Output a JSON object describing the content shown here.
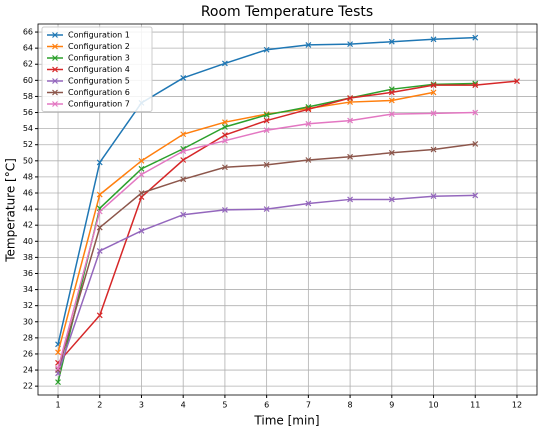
{
  "chart_data": {
    "type": "line",
    "title": "Room Temperature Tests",
    "x_label": "Time [min]",
    "y_label": "Temperature [°C]",
    "x": [
      1,
      2,
      3,
      4,
      5,
      6,
      7,
      8,
      9,
      10,
      11,
      12
    ],
    "series": [
      {
        "name": "Configuration 1",
        "color": "#1f77b4",
        "values": [
          27.2,
          49.8,
          57.2,
          60.3,
          62.1,
          63.8,
          64.4,
          64.5,
          64.8,
          65.1,
          65.3,
          null
        ]
      },
      {
        "name": "Configuration 2",
        "color": "#ff7f0e",
        "values": [
          26.2,
          45.8,
          50.0,
          53.3,
          54.8,
          55.8,
          56.5,
          57.3,
          57.5,
          58.5,
          null,
          null
        ]
      },
      {
        "name": "Configuration 3",
        "color": "#2ca02c",
        "values": [
          22.5,
          44.1,
          49.0,
          51.5,
          54.2,
          55.7,
          56.7,
          57.8,
          58.9,
          59.5,
          59.6,
          null
        ]
      },
      {
        "name": "Configuration 4",
        "color": "#d62728",
        "values": [
          24.9,
          30.8,
          45.5,
          50.1,
          53.2,
          55.0,
          56.4,
          57.8,
          58.5,
          59.4,
          59.4,
          59.9
        ]
      },
      {
        "name": "Configuration 5",
        "color": "#9467bd",
        "values": [
          23.6,
          38.8,
          41.3,
          43.3,
          43.9,
          44.0,
          44.7,
          45.2,
          45.2,
          45.6,
          45.7,
          null
        ]
      },
      {
        "name": "Configuration 6",
        "color": "#8c564b",
        "values": [
          24.0,
          41.7,
          46.0,
          47.7,
          49.2,
          49.5,
          50.1,
          50.5,
          51.0,
          51.4,
          52.1,
          null
        ]
      },
      {
        "name": "Configuration 7",
        "color": "#e377c2",
        "values": [
          24.2,
          43.7,
          48.3,
          51.2,
          52.5,
          53.8,
          54.6,
          55.0,
          55.8,
          55.9,
          56.0,
          null
        ]
      }
    ],
    "xlim": [
      0.52,
      12.48
    ],
    "xticks": [
      1,
      2,
      3,
      4,
      5,
      6,
      7,
      8,
      9,
      10,
      11,
      12
    ],
    "ylim": [
      20.9,
      67
    ],
    "yticks": [
      22,
      24,
      26,
      28,
      30,
      32,
      34,
      36,
      38,
      40,
      42,
      44,
      46,
      48,
      50,
      52,
      54,
      56,
      58,
      60,
      62,
      64,
      66
    ],
    "grid": true,
    "legend": "upper left"
  }
}
